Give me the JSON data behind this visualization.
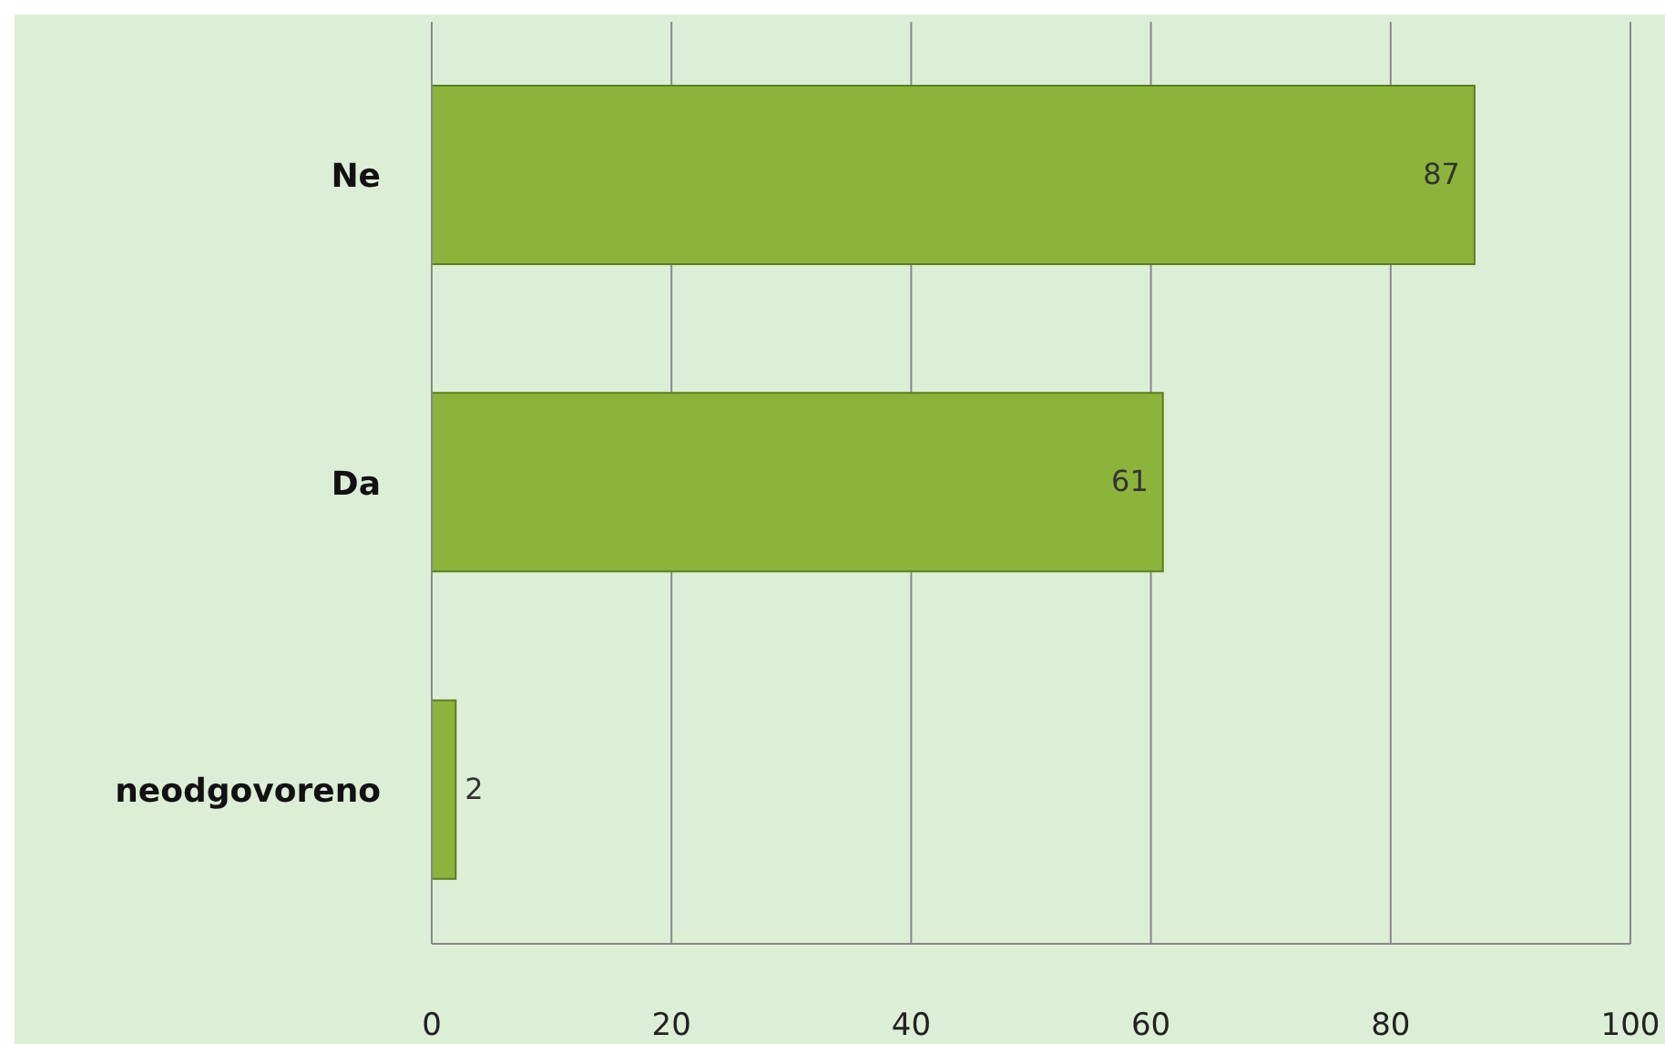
{
  "chart_data": {
    "type": "bar",
    "orientation": "horizontal",
    "categories": [
      "Ne",
      "Da",
      "neodgovoreno"
    ],
    "values": [
      87,
      61,
      2
    ],
    "color": "#8cb43a",
    "xlim": [
      0,
      100
    ],
    "xticks": [
      0,
      20,
      40,
      60,
      80,
      100
    ],
    "grid": "x",
    "data_labels": true
  }
}
